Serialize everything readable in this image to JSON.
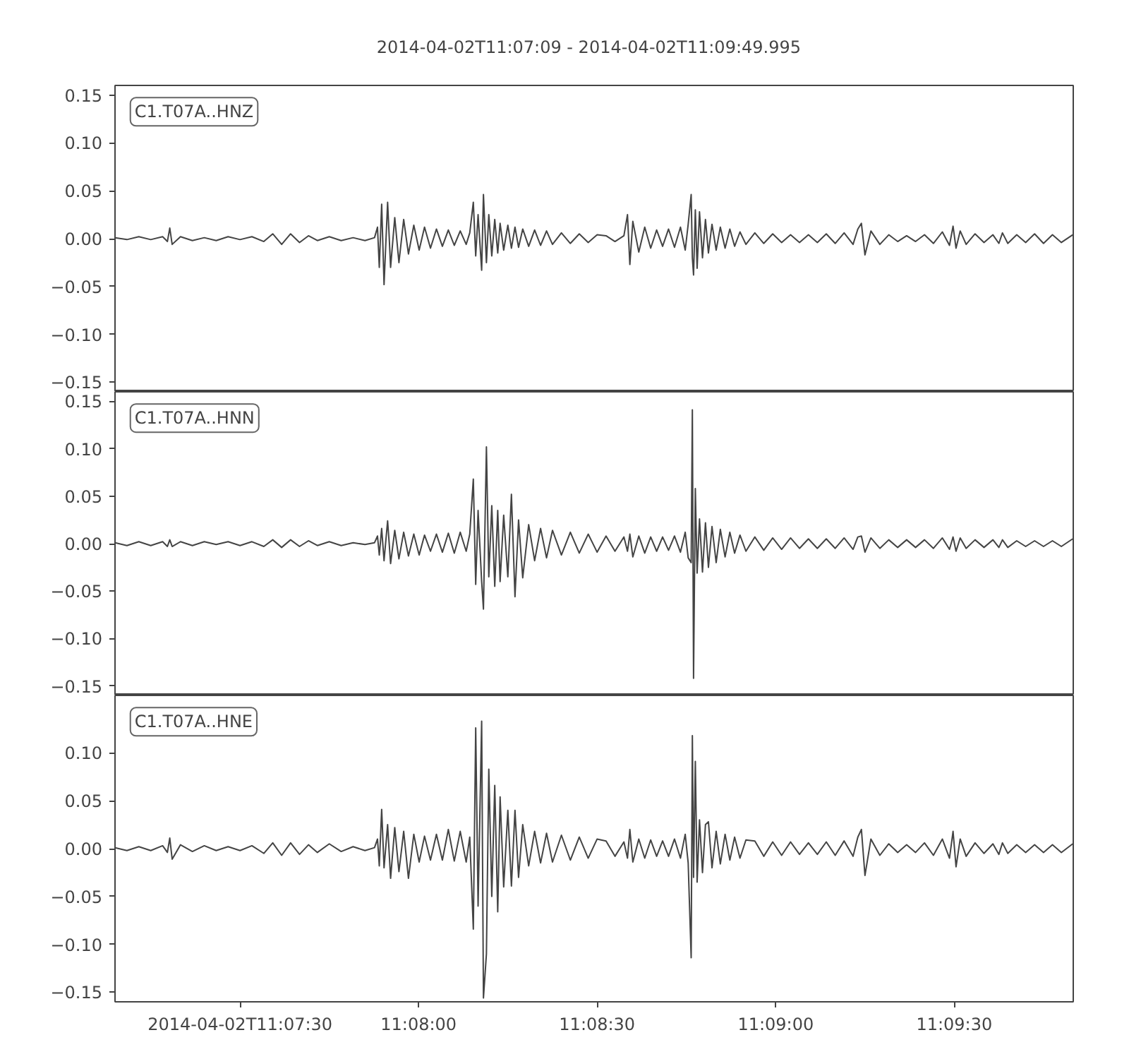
{
  "chart_data": [
    {
      "type": "line",
      "title": "2014-04-02T11:07:09  -  2014-04-02T11:09:49.995",
      "annotations": [
        "C1.T07A..HNZ"
      ],
      "tick_labels": "y",
      "xlim": [
        "2014-04-02T11:07:09",
        "2014-04-02T11:09:49.995"
      ],
      "ylim": [
        -0.16,
        0.16
      ],
      "yticks": [
        {
          "value": 0.15,
          "label": "0.15"
        },
        {
          "value": 0.1,
          "label": "0.10"
        },
        {
          "value": 0.05,
          "label": "0.05"
        },
        {
          "value": 0,
          "label": "0.00"
        },
        {
          "value": -0.05,
          "label": "−0.05"
        },
        {
          "value": -0.1,
          "label": "−0.10"
        },
        {
          "value": -0.15,
          "label": "−0.15"
        }
      ],
      "x": [
        "2014-04-02T11:07:09",
        "2014-04-02T11:07:11",
        "2014-04-02T11:07:13",
        "2014-04-02T11:07:15",
        "2014-04-02T11:07:17",
        "2014-04-02T11:07:17.8",
        "2014-04-02T11:07:18.2",
        "2014-04-02T11:07:18.6",
        "2014-04-02T11:07:20",
        "2014-04-02T11:07:22",
        "2014-04-02T11:07:24",
        "2014-04-02T11:07:26",
        "2014-04-02T11:07:28",
        "2014-04-02T11:07:30",
        "2014-04-02T11:07:32",
        "2014-04-02T11:07:34",
        "2014-04-02T11:07:35.5",
        "2014-04-02T11:07:37",
        "2014-04-02T11:07:38.5",
        "2014-04-02T11:07:40",
        "2014-04-02T11:07:41.5",
        "2014-04-02T11:07:43",
        "2014-04-02T11:07:45",
        "2014-04-02T11:07:47",
        "2014-04-02T11:07:49",
        "2014-04-02T11:07:51",
        "2014-04-02T11:07:52.6",
        "2014-04-02T11:07:53.1",
        "2014-04-02T11:07:53.4",
        "2014-04-02T11:07:53.8",
        "2014-04-02T11:07:54.2",
        "2014-04-02T11:07:54.8",
        "2014-04-02T11:07:55.3",
        "2014-04-02T11:07:56",
        "2014-04-02T11:07:56.7",
        "2014-04-02T11:07:57.5",
        "2014-04-02T11:07:58.3",
        "2014-04-02T11:07:59.2",
        "2014-04-02T11:08:00.1",
        "2014-04-02T11:08:01",
        "2014-04-02T11:08:02",
        "2014-04-02T11:08:03",
        "2014-04-02T11:08:04",
        "2014-04-02T11:08:05",
        "2014-04-02T11:08:06",
        "2014-04-02T11:08:07",
        "2014-04-02T11:08:08",
        "2014-04-02T11:08:08.6",
        "2014-04-02T11:08:09.2",
        "2014-04-02T11:08:09.6",
        "2014-04-02T11:08:10",
        "2014-04-02T11:08:10.6",
        "2014-04-02T11:08:10.9",
        "2014-04-02T11:08:11.4",
        "2014-04-02T11:08:11.8",
        "2014-04-02T11:08:12.3",
        "2014-04-02T11:08:12.8",
        "2014-04-02T11:08:13.3",
        "2014-04-02T11:08:13.7",
        "2014-04-02T11:08:14.3",
        "2014-04-02T11:08:15",
        "2014-04-02T11:08:15.6",
        "2014-04-02T11:08:16.2",
        "2014-04-02T11:08:16.8",
        "2014-04-02T11:08:17.5",
        "2014-04-02T11:08:18.5",
        "2014-04-02T11:08:19.5",
        "2014-04-02T11:08:20.5",
        "2014-04-02T11:08:21.5",
        "2014-04-02T11:08:22.5",
        "2014-04-02T11:08:24",
        "2014-04-02T11:08:25.5",
        "2014-04-02T11:08:27",
        "2014-04-02T11:08:28.5",
        "2014-04-02T11:08:30",
        "2014-04-02T11:08:31.5",
        "2014-04-02T11:08:33",
        "2014-04-02T11:08:34.5",
        "2014-04-02T11:08:35.1",
        "2014-04-02T11:08:35.5",
        "2014-04-02T11:08:36",
        "2014-04-02T11:08:37",
        "2014-04-02T11:08:38",
        "2014-04-02T11:08:39",
        "2014-04-02T11:08:40",
        "2014-04-02T11:08:41",
        "2014-04-02T11:08:42",
        "2014-04-02T11:08:43",
        "2014-04-02T11:08:44",
        "2014-04-02T11:08:44.8",
        "2014-04-02T11:08:45.3",
        "2014-04-02T11:08:45.8",
        "2014-04-02T11:08:46",
        "2014-04-02T11:08:46.2",
        "2014-04-02T11:08:46.5",
        "2014-04-02T11:08:46.8",
        "2014-04-02T11:08:47.2",
        "2014-04-02T11:08:47.7",
        "2014-04-02T11:08:48.2",
        "2014-04-02T11:08:48.7",
        "2014-04-02T11:08:49.3",
        "2014-04-02T11:08:50",
        "2014-04-02T11:08:50.7",
        "2014-04-02T11:08:51.5",
        "2014-04-02T11:08:52.3",
        "2014-04-02T11:08:53.1",
        "2014-04-02T11:08:54",
        "2014-04-02T11:08:55",
        "2014-04-02T11:08:56.5",
        "2014-04-02T11:08:58",
        "2014-04-02T11:08:59.5",
        "2014-04-02T11:09:01",
        "2014-04-02T11:09:02.5",
        "2014-04-02T11:09:04",
        "2014-04-02T11:09:05.5",
        "2014-04-02T11:09:07",
        "2014-04-02T11:09:08.5",
        "2014-04-02T11:09:10",
        "2014-04-02T11:09:11.5",
        "2014-04-02T11:09:13",
        "2014-04-02T11:09:13.8",
        "2014-04-02T11:09:14.4",
        "2014-04-02T11:09:15",
        "2014-04-02T11:09:16",
        "2014-04-02T11:09:17.5",
        "2014-04-02T11:09:19",
        "2014-04-02T11:09:20.5",
        "2014-04-02T11:09:22",
        "2014-04-02T11:09:23.5",
        "2014-04-02T11:09:25",
        "2014-04-02T11:09:26.5",
        "2014-04-02T11:09:28",
        "2014-04-02T11:09:29.2",
        "2014-04-02T11:09:29.8",
        "2014-04-02T11:09:30.3",
        "2014-04-02T11:09:31",
        "2014-04-02T11:09:32",
        "2014-04-02T11:09:33.5",
        "2014-04-02T11:09:35",
        "2014-04-02T11:09:36.5",
        "2014-04-02T11:09:37.5",
        "2014-04-02T11:09:38.1",
        "2014-04-02T11:09:39",
        "2014-04-02T11:09:40.5",
        "2014-04-02T11:09:42",
        "2014-04-02T11:09:43.5",
        "2014-04-02T11:09:45",
        "2014-04-02T11:09:46.5",
        "2014-04-02T11:09:48",
        "2014-04-02T11:09:49.9"
      ],
      "series": [
        {
          "color": "#444444",
          "values": [
            0.001,
            -0.001,
            0.002,
            -0.001,
            0.002,
            -0.003,
            0.011,
            -0.006,
            0.002,
            -0.002,
            0.001,
            -0.002,
            0.002,
            -0.001,
            0.002,
            -0.003,
            0.005,
            -0.006,
            0.005,
            -0.004,
            0.003,
            -0.002,
            0.002,
            -0.002,
            0.001,
            -0.002,
            0.001,
            0.012,
            -0.03,
            0.036,
            -0.048,
            0.038,
            -0.03,
            0.022,
            -0.025,
            0.02,
            -0.016,
            0.014,
            -0.012,
            0.012,
            -0.01,
            0.01,
            -0.008,
            0.009,
            -0.007,
            0.008,
            -0.006,
            0.006,
            0.038,
            -0.018,
            0.025,
            -0.033,
            0.046,
            -0.025,
            0.025,
            -0.018,
            0.02,
            -0.015,
            0.016,
            -0.012,
            0.014,
            -0.01,
            0.012,
            -0.009,
            0.01,
            -0.008,
            0.009,
            -0.007,
            0.008,
            -0.006,
            0.006,
            -0.005,
            0.005,
            -0.004,
            0.004,
            0.003,
            -0.003,
            0.003,
            0.025,
            -0.027,
            0.018,
            -0.014,
            0.012,
            -0.01,
            0.009,
            -0.008,
            0.01,
            -0.009,
            0.012,
            -0.012,
            0.015,
            0.046,
            -0.02,
            -0.038,
            0.03,
            -0.031,
            0.028,
            -0.02,
            0.02,
            -0.015,
            0.015,
            -0.012,
            0.012,
            -0.01,
            0.01,
            -0.008,
            0.007,
            -0.006,
            0.006,
            -0.005,
            0.005,
            -0.004,
            0.004,
            -0.004,
            0.004,
            -0.004,
            0.005,
            -0.005,
            0.006,
            -0.006,
            0.01,
            0.016,
            -0.017,
            0.008,
            -0.006,
            0.004,
            -0.003,
            0.003,
            -0.003,
            0.004,
            -0.005,
            0.007,
            -0.007,
            0.013,
            -0.01,
            0.008,
            -0.006,
            0.005,
            -0.004,
            0.004,
            -0.005,
            0.006,
            -0.005,
            0.004,
            -0.004,
            0.005,
            -0.005,
            0.004,
            -0.004,
            0.004
          ]
        }
      ]
    },
    {
      "type": "line",
      "annotations": [
        "C1.T07A..HNN"
      ],
      "tick_labels": "y",
      "xlim": [
        "2014-04-02T11:07:09",
        "2014-04-02T11:09:49.995"
      ],
      "ylim": [
        -0.16,
        0.16
      ],
      "yticks": [
        {
          "value": 0.15,
          "label": "0.15"
        },
        {
          "value": 0.1,
          "label": "0.10"
        },
        {
          "value": 0.05,
          "label": "0.05"
        },
        {
          "value": 0,
          "label": "0.00"
        },
        {
          "value": -0.05,
          "label": "−0.05"
        },
        {
          "value": -0.1,
          "label": "−0.10"
        },
        {
          "value": -0.15,
          "label": "−0.15"
        }
      ],
      "x": [
        "2014-04-02T11:07:09",
        "2014-04-02T11:07:11",
        "2014-04-02T11:07:13",
        "2014-04-02T11:07:15",
        "2014-04-02T11:07:17",
        "2014-04-02T11:07:17.8",
        "2014-04-02T11:07:18.2",
        "2014-04-02T11:07:18.6",
        "2014-04-02T11:07:20",
        "2014-04-02T11:07:22",
        "2014-04-02T11:07:24",
        "2014-04-02T11:07:26",
        "2014-04-02T11:07:28",
        "2014-04-02T11:07:30",
        "2014-04-02T11:07:32",
        "2014-04-02T11:07:34",
        "2014-04-02T11:07:35.5",
        "2014-04-02T11:07:37",
        "2014-04-02T11:07:38.5",
        "2014-04-02T11:07:40",
        "2014-04-02T11:07:41.5",
        "2014-04-02T11:07:43",
        "2014-04-02T11:07:45",
        "2014-04-02T11:07:47",
        "2014-04-02T11:07:49",
        "2014-04-02T11:07:51",
        "2014-04-02T11:07:52.6",
        "2014-04-02T11:07:53.1",
        "2014-04-02T11:07:53.4",
        "2014-04-02T11:07:53.8",
        "2014-04-02T11:07:54.2",
        "2014-04-02T11:07:54.8",
        "2014-04-02T11:07:55.3",
        "2014-04-02T11:07:56",
        "2014-04-02T11:07:56.7",
        "2014-04-02T11:07:57.5",
        "2014-04-02T11:07:58.3",
        "2014-04-02T11:07:59.2",
        "2014-04-02T11:08:00.1",
        "2014-04-02T11:08:01",
        "2014-04-02T11:08:02",
        "2014-04-02T11:08:03",
        "2014-04-02T11:08:04",
        "2014-04-02T11:08:05",
        "2014-04-02T11:08:06",
        "2014-04-02T11:08:07",
        "2014-04-02T11:08:08",
        "2014-04-02T11:08:08.6",
        "2014-04-02T11:08:09.2",
        "2014-04-02T11:08:09.6",
        "2014-04-02T11:08:10",
        "2014-04-02T11:08:10.6",
        "2014-04-02T11:08:10.9",
        "2014-04-02T11:08:11.4",
        "2014-04-02T11:08:11.8",
        "2014-04-02T11:08:12.3",
        "2014-04-02T11:08:12.8",
        "2014-04-02T11:08:13.3",
        "2014-04-02T11:08:13.7",
        "2014-04-02T11:08:14.3",
        "2014-04-02T11:08:15",
        "2014-04-02T11:08:15.6",
        "2014-04-02T11:08:16.2",
        "2014-04-02T11:08:16.8",
        "2014-04-02T11:08:17.5",
        "2014-04-02T11:08:18.5",
        "2014-04-02T11:08:19.5",
        "2014-04-02T11:08:20.5",
        "2014-04-02T11:08:21.5",
        "2014-04-02T11:08:22.5",
        "2014-04-02T11:08:24",
        "2014-04-02T11:08:25.5",
        "2014-04-02T11:08:27",
        "2014-04-02T11:08:28.5",
        "2014-04-02T11:08:30",
        "2014-04-02T11:08:31.5",
        "2014-04-02T11:08:33",
        "2014-04-02T11:08:34.5",
        "2014-04-02T11:08:35.1",
        "2014-04-02T11:08:35.5",
        "2014-04-02T11:08:36",
        "2014-04-02T11:08:37",
        "2014-04-02T11:08:38",
        "2014-04-02T11:08:39",
        "2014-04-02T11:08:40",
        "2014-04-02T11:08:41",
        "2014-04-02T11:08:42",
        "2014-04-02T11:08:43",
        "2014-04-02T11:08:44",
        "2014-04-02T11:08:44.8",
        "2014-04-02T11:08:45.3",
        "2014-04-02T11:08:45.8",
        "2014-04-02T11:08:46",
        "2014-04-02T11:08:46.2",
        "2014-04-02T11:08:46.5",
        "2014-04-02T11:08:46.8",
        "2014-04-02T11:08:47.2",
        "2014-04-02T11:08:47.7",
        "2014-04-02T11:08:48.2",
        "2014-04-02T11:08:48.7",
        "2014-04-02T11:08:49.3",
        "2014-04-02T11:08:50",
        "2014-04-02T11:08:50.7",
        "2014-04-02T11:08:51.5",
        "2014-04-02T11:08:52.3",
        "2014-04-02T11:08:53.1",
        "2014-04-02T11:08:54",
        "2014-04-02T11:08:55",
        "2014-04-02T11:08:56.5",
        "2014-04-02T11:08:58",
        "2014-04-02T11:08:59.5",
        "2014-04-02T11:09:01",
        "2014-04-02T11:09:02.5",
        "2014-04-02T11:09:04",
        "2014-04-02T11:09:05.5",
        "2014-04-02T11:09:07",
        "2014-04-02T11:09:08.5",
        "2014-04-02T11:09:10",
        "2014-04-02T11:09:11.5",
        "2014-04-02T11:09:13",
        "2014-04-02T11:09:13.8",
        "2014-04-02T11:09:14.4",
        "2014-04-02T11:09:15",
        "2014-04-02T11:09:16",
        "2014-04-02T11:09:17.5",
        "2014-04-02T11:09:19",
        "2014-04-02T11:09:20.5",
        "2014-04-02T11:09:22",
        "2014-04-02T11:09:23.5",
        "2014-04-02T11:09:25",
        "2014-04-02T11:09:26.5",
        "2014-04-02T11:09:28",
        "2014-04-02T11:09:29.2",
        "2014-04-02T11:09:29.8",
        "2014-04-02T11:09:30.3",
        "2014-04-02T11:09:31",
        "2014-04-02T11:09:32",
        "2014-04-02T11:09:33.5",
        "2014-04-02T11:09:35",
        "2014-04-02T11:09:36.5",
        "2014-04-02T11:09:37.5",
        "2014-04-02T11:09:38.1",
        "2014-04-02T11:09:39",
        "2014-04-02T11:09:40.5",
        "2014-04-02T11:09:42",
        "2014-04-02T11:09:43.5",
        "2014-04-02T11:09:45",
        "2014-04-02T11:09:46.5",
        "2014-04-02T11:09:48",
        "2014-04-02T11:09:49.9"
      ],
      "series": [
        {
          "color": "#444444",
          "values": [
            0.001,
            -0.002,
            0.002,
            -0.002,
            0.002,
            -0.003,
            0.004,
            -0.003,
            0.002,
            -0.002,
            0.002,
            -0.001,
            0.002,
            -0.002,
            0.002,
            -0.003,
            0.004,
            -0.004,
            0.004,
            -0.003,
            0.003,
            -0.002,
            0.002,
            -0.002,
            0.001,
            -0.001,
            0.001,
            0.008,
            -0.012,
            0.016,
            -0.018,
            0.024,
            -0.021,
            0.014,
            -0.016,
            0.012,
            -0.013,
            0.01,
            -0.012,
            0.009,
            -0.008,
            0.01,
            -0.009,
            0.011,
            -0.01,
            0.012,
            -0.008,
            0.01,
            0.068,
            -0.043,
            0.035,
            -0.04,
            -0.069,
            0.102,
            -0.035,
            0.04,
            -0.045,
            0.035,
            -0.04,
            0.03,
            -0.035,
            0.052,
            -0.056,
            0.025,
            -0.036,
            0.02,
            -0.018,
            0.016,
            -0.015,
            0.014,
            -0.012,
            0.012,
            -0.01,
            0.01,
            -0.009,
            0.008,
            -0.008,
            0.007,
            -0.008,
            0.01,
            -0.014,
            0.008,
            -0.01,
            0.007,
            -0.008,
            0.007,
            -0.007,
            0.008,
            -0.009,
            0.012,
            -0.015,
            -0.02,
            0.141,
            -0.142,
            0.058,
            -0.031,
            0.026,
            -0.03,
            0.022,
            -0.025,
            0.018,
            -0.02,
            0.015,
            -0.014,
            0.012,
            -0.01,
            0.009,
            -0.008,
            0.007,
            -0.007,
            0.006,
            -0.006,
            0.006,
            -0.005,
            0.005,
            -0.005,
            0.005,
            -0.005,
            0.006,
            -0.006,
            0.007,
            0.008,
            -0.009,
            0.006,
            -0.005,
            0.004,
            -0.004,
            0.004,
            -0.004,
            0.004,
            -0.005,
            0.006,
            -0.006,
            0.007,
            -0.008,
            0.006,
            -0.005,
            0.004,
            -0.004,
            0.004,
            -0.004,
            0.004,
            -0.004,
            0.003,
            -0.003,
            0.003,
            -0.003,
            0.003,
            -0.003,
            0.005
          ]
        }
      ]
    },
    {
      "type": "line",
      "annotations": [
        "C1.T07A..HNE"
      ],
      "xlim": [
        "2014-04-02T11:07:09",
        "2014-04-02T11:09:49.995"
      ],
      "ylim": [
        -0.16,
        0.16
      ],
      "xticks": [
        {
          "value": "2014-04-02T11:07:30",
          "label": "2014-04-02T11:07:30"
        },
        {
          "value": "2014-04-02T11:08:00",
          "label": "11:08:00"
        },
        {
          "value": "2014-04-02T11:08:30",
          "label": "11:08:30"
        },
        {
          "value": "2014-04-02T11:09:00",
          "label": "11:09:00"
        },
        {
          "value": "2014-04-02T11:09:30",
          "label": "11:09:30"
        }
      ],
      "yticks": [
        {
          "value": 0.1,
          "label": "0.10"
        },
        {
          "value": 0.05,
          "label": "0.05"
        },
        {
          "value": 0,
          "label": "0.00"
        },
        {
          "value": -0.05,
          "label": "−0.05"
        },
        {
          "value": -0.1,
          "label": "−0.10"
        },
        {
          "value": -0.15,
          "label": "−0.15"
        }
      ],
      "x": [
        "2014-04-02T11:07:09",
        "2014-04-02T11:07:11",
        "2014-04-02T11:07:13",
        "2014-04-02T11:07:15",
        "2014-04-02T11:07:17",
        "2014-04-02T11:07:17.8",
        "2014-04-02T11:07:18.2",
        "2014-04-02T11:07:18.6",
        "2014-04-02T11:07:20",
        "2014-04-02T11:07:22",
        "2014-04-02T11:07:24",
        "2014-04-02T11:07:26",
        "2014-04-02T11:07:28",
        "2014-04-02T11:07:30",
        "2014-04-02T11:07:32",
        "2014-04-02T11:07:34",
        "2014-04-02T11:07:35.5",
        "2014-04-02T11:07:37",
        "2014-04-02T11:07:38.5",
        "2014-04-02T11:07:40",
        "2014-04-02T11:07:41.5",
        "2014-04-02T11:07:43",
        "2014-04-02T11:07:45",
        "2014-04-02T11:07:47",
        "2014-04-02T11:07:49",
        "2014-04-02T11:07:51",
        "2014-04-02T11:07:52.6",
        "2014-04-02T11:07:53.1",
        "2014-04-02T11:07:53.4",
        "2014-04-02T11:07:53.8",
        "2014-04-02T11:07:54.2",
        "2014-04-02T11:07:54.8",
        "2014-04-02T11:07:55.3",
        "2014-04-02T11:07:56",
        "2014-04-02T11:07:56.7",
        "2014-04-02T11:07:57.5",
        "2014-04-02T11:07:58.3",
        "2014-04-02T11:07:59.2",
        "2014-04-02T11:08:00.1",
        "2014-04-02T11:08:01",
        "2014-04-02T11:08:02",
        "2014-04-02T11:08:03",
        "2014-04-02T11:08:04",
        "2014-04-02T11:08:05",
        "2014-04-02T11:08:06",
        "2014-04-02T11:08:07",
        "2014-04-02T11:08:08",
        "2014-04-02T11:08:08.6",
        "2014-04-02T11:08:09.2",
        "2014-04-02T11:08:09.6",
        "2014-04-02T11:08:10",
        "2014-04-02T11:08:10.6",
        "2014-04-02T11:08:10.9",
        "2014-04-02T11:08:11.4",
        "2014-04-02T11:08:11.8",
        "2014-04-02T11:08:12.3",
        "2014-04-02T11:08:12.8",
        "2014-04-02T11:08:13.3",
        "2014-04-02T11:08:13.7",
        "2014-04-02T11:08:14.3",
        "2014-04-02T11:08:15",
        "2014-04-02T11:08:15.6",
        "2014-04-02T11:08:16.2",
        "2014-04-02T11:08:16.8",
        "2014-04-02T11:08:17.5",
        "2014-04-02T11:08:18.5",
        "2014-04-02T11:08:19.5",
        "2014-04-02T11:08:20.5",
        "2014-04-02T11:08:21.5",
        "2014-04-02T11:08:22.5",
        "2014-04-02T11:08:24",
        "2014-04-02T11:08:25.5",
        "2014-04-02T11:08:27",
        "2014-04-02T11:08:28.5",
        "2014-04-02T11:08:30",
        "2014-04-02T11:08:31.5",
        "2014-04-02T11:08:33",
        "2014-04-02T11:08:34.5",
        "2014-04-02T11:08:35.1",
        "2014-04-02T11:08:35.5",
        "2014-04-02T11:08:36",
        "2014-04-02T11:08:37",
        "2014-04-02T11:08:38",
        "2014-04-02T11:08:39",
        "2014-04-02T11:08:40",
        "2014-04-02T11:08:41",
        "2014-04-02T11:08:42",
        "2014-04-02T11:08:43",
        "2014-04-02T11:08:44",
        "2014-04-02T11:08:44.8",
        "2014-04-02T11:08:45.3",
        "2014-04-02T11:08:45.8",
        "2014-04-02T11:08:46",
        "2014-04-02T11:08:46.2",
        "2014-04-02T11:08:46.5",
        "2014-04-02T11:08:46.8",
        "2014-04-02T11:08:47.2",
        "2014-04-02T11:08:47.7",
        "2014-04-02T11:08:48.2",
        "2014-04-02T11:08:48.7",
        "2014-04-02T11:08:49.3",
        "2014-04-02T11:08:50",
        "2014-04-02T11:08:50.7",
        "2014-04-02T11:08:51.5",
        "2014-04-02T11:08:52.3",
        "2014-04-02T11:08:53.1",
        "2014-04-02T11:08:54",
        "2014-04-02T11:08:55",
        "2014-04-02T11:08:56.5",
        "2014-04-02T11:08:58",
        "2014-04-02T11:08:59.5",
        "2014-04-02T11:09:01",
        "2014-04-02T11:09:02.5",
        "2014-04-02T11:09:04",
        "2014-04-02T11:09:05.5",
        "2014-04-02T11:09:07",
        "2014-04-02T11:09:08.5",
        "2014-04-02T11:09:10",
        "2014-04-02T11:09:11.5",
        "2014-04-02T11:09:13",
        "2014-04-02T11:09:13.8",
        "2014-04-02T11:09:14.4",
        "2014-04-02T11:09:15",
        "2014-04-02T11:09:16",
        "2014-04-02T11:09:17.5",
        "2014-04-02T11:09:19",
        "2014-04-02T11:09:20.5",
        "2014-04-02T11:09:22",
        "2014-04-02T11:09:23.5",
        "2014-04-02T11:09:25",
        "2014-04-02T11:09:26.5",
        "2014-04-02T11:09:28",
        "2014-04-02T11:09:29.2",
        "2014-04-02T11:09:29.8",
        "2014-04-02T11:09:30.3",
        "2014-04-02T11:09:31",
        "2014-04-02T11:09:32",
        "2014-04-02T11:09:33.5",
        "2014-04-02T11:09:35",
        "2014-04-02T11:09:36.5",
        "2014-04-02T11:09:37.5",
        "2014-04-02T11:09:38.1",
        "2014-04-02T11:09:39",
        "2014-04-02T11:09:40.5",
        "2014-04-02T11:09:42",
        "2014-04-02T11:09:43.5",
        "2014-04-02T11:09:45",
        "2014-04-02T11:09:46.5",
        "2014-04-02T11:09:48",
        "2014-04-02T11:09:49.9"
      ],
      "series": [
        {
          "color": "#444444",
          "values": [
            0.001,
            -0.002,
            0.002,
            -0.002,
            0.003,
            -0.004,
            0.011,
            -0.011,
            0.004,
            -0.003,
            0.003,
            -0.002,
            0.002,
            -0.002,
            0.003,
            -0.005,
            0.006,
            -0.007,
            0.006,
            -0.006,
            0.004,
            -0.004,
            0.005,
            -0.003,
            0.002,
            -0.002,
            0.001,
            0.01,
            -0.018,
            0.041,
            -0.02,
            0.025,
            -0.031,
            0.022,
            -0.024,
            0.018,
            -0.031,
            0.015,
            -0.014,
            0.013,
            -0.012,
            0.015,
            -0.012,
            0.02,
            -0.013,
            0.018,
            -0.014,
            0.012,
            -0.084,
            0.126,
            -0.06,
            0.133,
            -0.156,
            -0.11,
            0.083,
            -0.05,
            0.066,
            -0.066,
            0.054,
            -0.04,
            0.04,
            -0.039,
            0.04,
            -0.03,
            0.025,
            -0.018,
            0.018,
            -0.015,
            0.016,
            -0.014,
            0.014,
            -0.012,
            0.012,
            -0.01,
            0.01,
            0.008,
            -0.008,
            0.007,
            -0.01,
            0.02,
            -0.014,
            0.01,
            -0.01,
            0.009,
            -0.008,
            0.008,
            -0.008,
            0.01,
            -0.01,
            0.015,
            -0.015,
            -0.114,
            0.118,
            -0.03,
            0.091,
            -0.035,
            0.03,
            -0.025,
            0.025,
            0.028,
            -0.02,
            0.018,
            -0.016,
            0.015,
            -0.012,
            0.012,
            -0.01,
            0.009,
            0.008,
            -0.008,
            0.007,
            -0.007,
            0.007,
            -0.006,
            0.006,
            -0.006,
            0.007,
            -0.007,
            0.008,
            -0.008,
            0.012,
            0.02,
            -0.028,
            0.01,
            -0.007,
            0.005,
            -0.004,
            0.004,
            -0.004,
            0.006,
            -0.007,
            0.01,
            -0.01,
            0.018,
            -0.019,
            0.01,
            -0.008,
            0.006,
            -0.005,
            0.005,
            -0.006,
            0.006,
            -0.005,
            0.004,
            -0.004,
            0.004,
            -0.004,
            0.004,
            -0.004,
            0.005
          ]
        }
      ]
    }
  ]
}
